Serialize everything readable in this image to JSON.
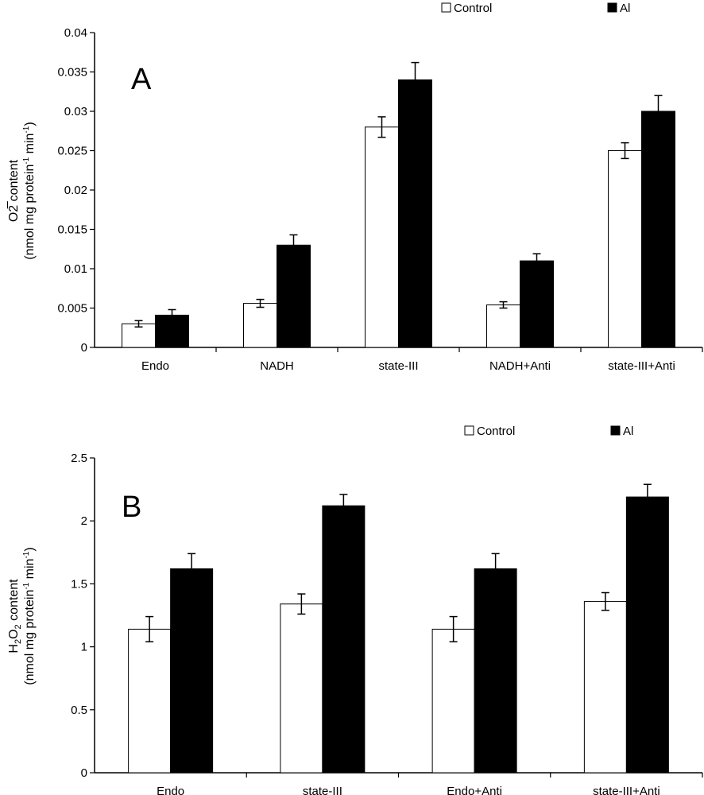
{
  "chart_data": [
    {
      "type": "bar",
      "panel_label": "A",
      "ylabel_line1": "O2̅ content",
      "ylabel_line1_parts": {
        "main": "O",
        "sub": "2",
        "sup": "−",
        "rest": " content"
      },
      "ylabel_line2": "(nmol mg protein-1 min-1)",
      "ylabel_line2_parts": {
        "a": "(nmol mg protein",
        "sup1": "-1",
        "b": " min",
        "sup2": "-1",
        "c": ")"
      },
      "ylim": [
        0,
        0.04
      ],
      "yticks": [
        "0",
        "0.005",
        "0.01",
        "0.015",
        "0.02",
        "0.025",
        "0.03",
        "0.035",
        "0.04"
      ],
      "categories": [
        "Endo",
        "NADH",
        "state-III",
        "NADH+Anti",
        "state-III+Anti"
      ],
      "series": [
        {
          "name": "Control",
          "color": "#ffffff",
          "values": [
            0.003,
            0.0056,
            0.028,
            0.0054,
            0.025
          ],
          "errors": [
            0.0004,
            0.0005,
            0.0013,
            0.0004,
            0.001
          ]
        },
        {
          "name": "Al",
          "color": "#000000",
          "values": [
            0.0041,
            0.013,
            0.034,
            0.011,
            0.03
          ],
          "errors": [
            0.0007,
            0.0013,
            0.0022,
            0.0009,
            0.002
          ]
        }
      ],
      "legend": "top-right",
      "grid": false
    },
    {
      "type": "bar",
      "panel_label": "B",
      "ylabel_line1_parts": {
        "a": "H",
        "sub1": "2",
        "b": "O",
        "sub2": "2",
        "c": " content"
      },
      "ylabel_line2_parts": {
        "a": "(nmol mg protein",
        "sup1": "-1",
        "b": " min",
        "sup2": "-1",
        "c": ")"
      },
      "ylim": [
        0,
        2.5
      ],
      "yticks": [
        "0",
        "0.5",
        "1",
        "1.5",
        "2",
        "2.5"
      ],
      "categories": [
        "Endo",
        "state-III",
        "Endo+Anti",
        "state-III+Anti"
      ],
      "series": [
        {
          "name": "Control",
          "color": "#ffffff",
          "values": [
            1.14,
            1.34,
            1.14,
            1.36
          ],
          "errors": [
            0.1,
            0.08,
            0.1,
            0.07
          ]
        },
        {
          "name": "Al",
          "color": "#000000",
          "values": [
            1.62,
            2.12,
            1.62,
            2.19
          ],
          "errors": [
            0.12,
            0.09,
            0.12,
            0.1
          ]
        }
      ],
      "legend": "top-right",
      "grid": false
    }
  ]
}
